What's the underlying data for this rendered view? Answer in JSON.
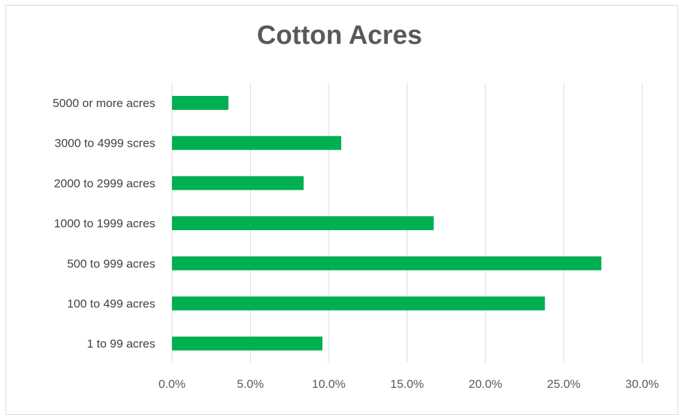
{
  "chart_data": {
    "type": "bar",
    "orientation": "horizontal",
    "title": "Cotton Acres",
    "categories": [
      "5000 or more acres",
      "3000 to 4999 scres",
      "2000 to 2999 acres",
      "1000 to 1999 acres",
      "500 to 999 acres",
      "100  to 499 acres",
      "1 to 99 acres"
    ],
    "values": [
      3.6,
      10.8,
      8.4,
      16.7,
      27.4,
      23.8,
      9.6
    ],
    "xlim": [
      0,
      30
    ],
    "x_ticks": [
      "0.0%",
      "5.0%",
      "10.0%",
      "15.0%",
      "20.0%",
      "25.0%",
      "30.0%"
    ],
    "x_tick_values": [
      0,
      5,
      10,
      15,
      20,
      25,
      30
    ],
    "grid": true,
    "legend": false,
    "bar_color": "#00B050",
    "gridline_color": "#d9d9d9"
  }
}
